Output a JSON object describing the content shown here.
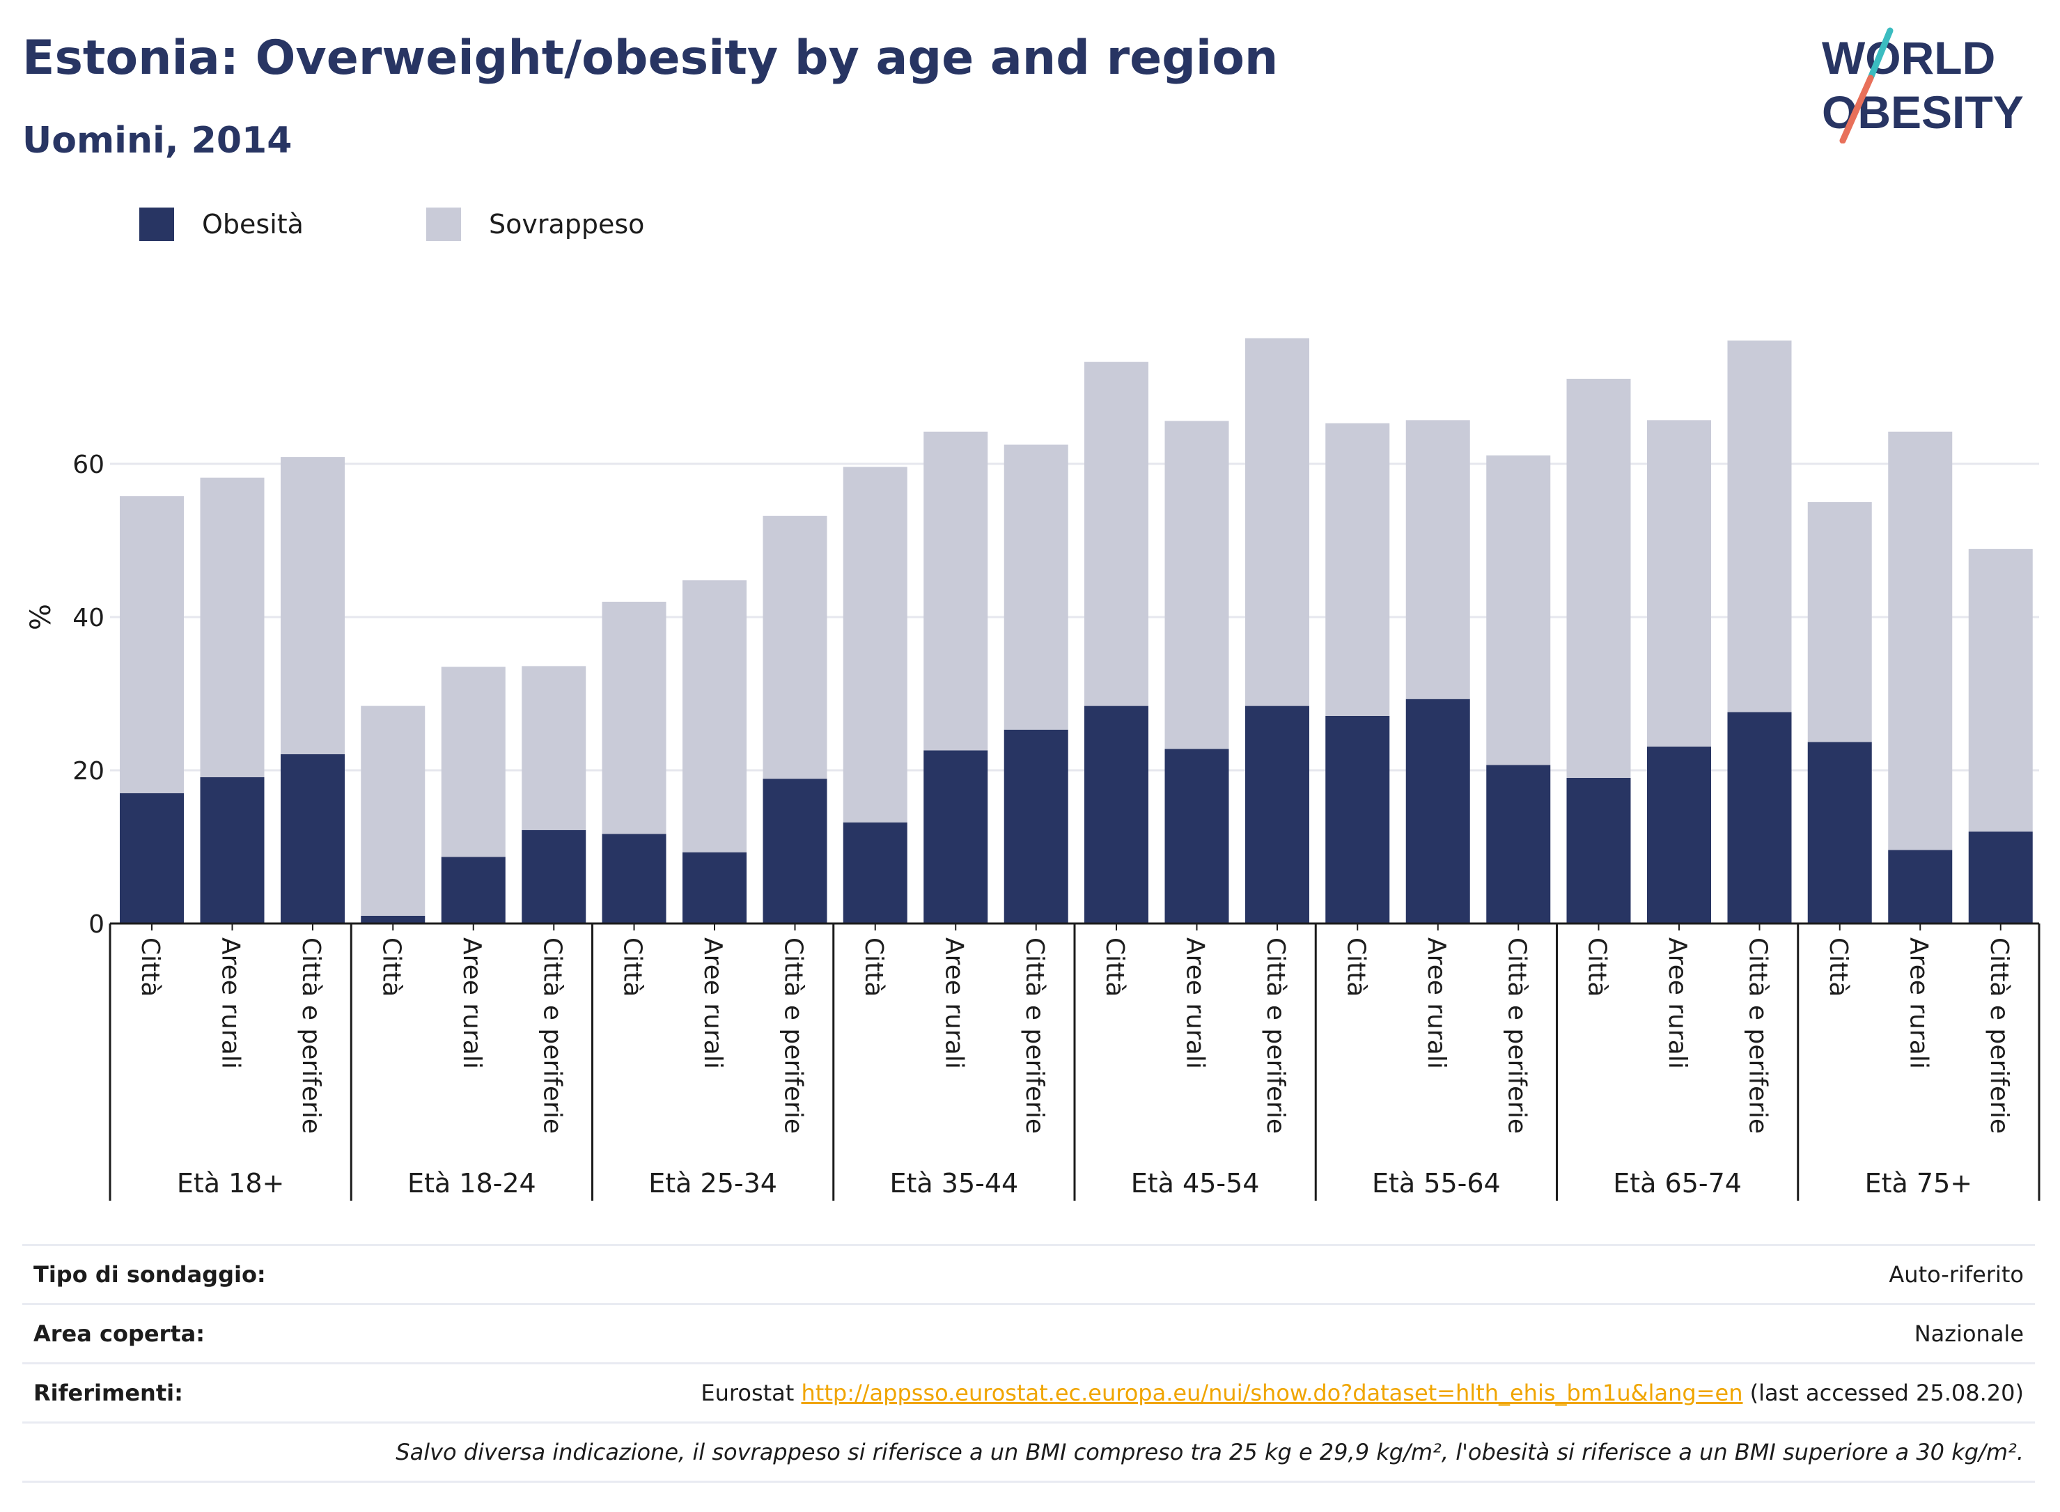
{
  "header": {
    "title": "Estonia: Overweight/obesity by age and region",
    "subtitle": "Uomini, 2014"
  },
  "logo": {
    "line1": "WORLD",
    "line2": "OBESITY"
  },
  "legend": {
    "items": [
      "Obesità",
      "Sovrappeso"
    ]
  },
  "colors": {
    "obesity": "#283563",
    "overweight": "#c9cbd8",
    "accent_link": "#f0a500",
    "logo_teal": "#3bbcc0",
    "logo_coral": "#e8705a"
  },
  "chart_data": {
    "type": "bar",
    "stacked": true,
    "title": "Estonia: Overweight/obesity by age and region",
    "subtitle": "Uomini, 2014",
    "ylabel": "%",
    "ylim": [
      0,
      82
    ],
    "yticks": [
      0,
      20,
      40,
      60
    ],
    "grid": true,
    "legend_position": "top-left",
    "groups": [
      {
        "label": "Età 18+",
        "categories": [
          "Città",
          "Aree rurali",
          "Città e periferie"
        ],
        "obesity": [
          17.0,
          19.1,
          22.1
        ],
        "overweight": [
          38.8,
          39.1,
          38.8
        ]
      },
      {
        "label": "Età 18-24",
        "categories": [
          "Città",
          "Aree rurali",
          "Città e periferie"
        ],
        "obesity": [
          1.0,
          8.7,
          12.2
        ],
        "overweight": [
          27.4,
          24.8,
          21.4
        ]
      },
      {
        "label": "Età 25-34",
        "categories": [
          "Città",
          "Aree rurali",
          "Città e periferie"
        ],
        "obesity": [
          11.7,
          9.3,
          18.9
        ],
        "overweight": [
          30.3,
          35.5,
          34.3
        ]
      },
      {
        "label": "Età 35-44",
        "categories": [
          "Città",
          "Aree rurali",
          "Città e periferie"
        ],
        "obesity": [
          13.2,
          22.6,
          25.3
        ],
        "overweight": [
          46.4,
          41.6,
          37.2
        ]
      },
      {
        "label": "Età 45-54",
        "categories": [
          "Città",
          "Aree rurali",
          "Città e periferie"
        ],
        "obesity": [
          28.4,
          22.8,
          28.4
        ],
        "overweight": [
          44.9,
          42.8,
          48.0
        ]
      },
      {
        "label": "Età 55-64",
        "categories": [
          "Città",
          "Aree rurali",
          "Città e periferie"
        ],
        "obesity": [
          27.1,
          29.3,
          20.7
        ],
        "overweight": [
          38.2,
          36.4,
          40.4
        ]
      },
      {
        "label": "Età 65-74",
        "categories": [
          "Città",
          "Aree rurali",
          "Città e periferie"
        ],
        "obesity": [
          19.0,
          23.1,
          27.6
        ],
        "overweight": [
          52.1,
          42.6,
          48.5
        ]
      },
      {
        "label": "Età 75+",
        "categories": [
          "Città",
          "Aree rurali",
          "Città e periferie"
        ],
        "obesity": [
          23.7,
          9.6,
          12.0
        ],
        "overweight": [
          31.3,
          54.6,
          36.9
        ]
      }
    ],
    "series": [
      {
        "name": "Obesità",
        "key": "obesity"
      },
      {
        "name": "Sovrappeso",
        "key": "overweight"
      }
    ]
  },
  "footer": {
    "survey_type_label": "Tipo di sondaggio:",
    "survey_type_value": "Auto-riferito",
    "area_label": "Area coperta:",
    "area_value": "Nazionale",
    "references_label": "Riferimenti:",
    "references_prefix": "Eurostat",
    "references_link": "http://appsso.eurostat.ec.europa.eu/nui/show.do?dataset=hlth_ehis_bm1u&lang=en",
    "references_suffix": "(last accessed 25.08.20)",
    "note": "Salvo diversa indicazione, il sovrappeso si riferisce a un BMI compreso tra 25 kg e 29,9 kg/m², l'obesità si riferisce a un BMI superiore a 30 kg/m²."
  }
}
